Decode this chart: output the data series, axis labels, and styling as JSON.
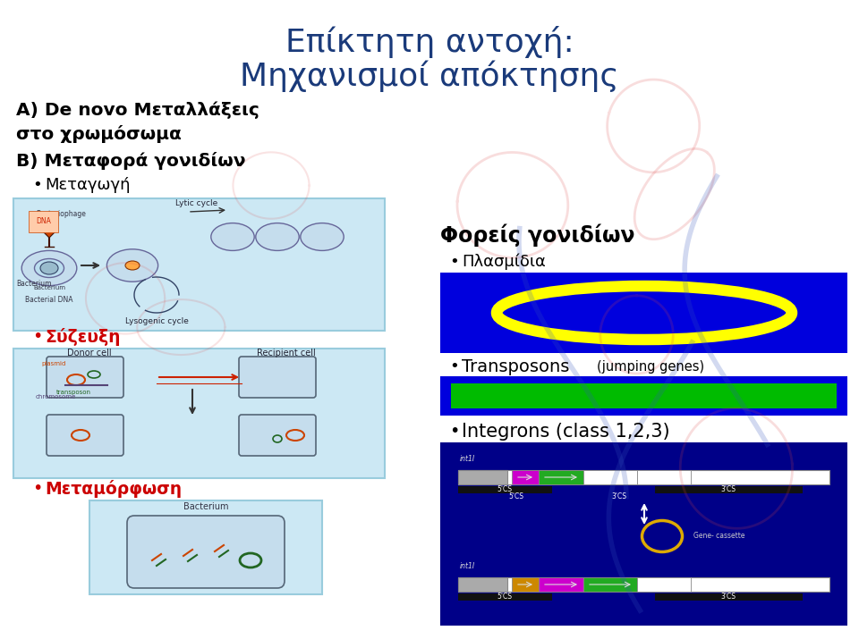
{
  "title_line1": "Επίκτητη αντοχή:",
  "title_line2": "Μηχανισμοί απόκτησης",
  "title_color": "#1a3a7a",
  "title_fontsize": 26,
  "bg_color": "#ffffff",
  "text_A": "A) De novo Μεταλλάξεις",
  "text_A2": "στο χρωμόσωμα",
  "text_B": "B) Μεταφορά γονιδίων",
  "bullet_metagogi": "Μεταγωγή",
  "bullet_syzefxi": "Σύζευξη",
  "bullet_metamorfosi": "Μεταμόρφωση",
  "text_foreis": "Φορείς γονιδίων",
  "bullet_plasmidio": "Πλασμίδια",
  "bullet_transposons": "Transposons",
  "text_jumping": "(jumping genes)",
  "bullet_integrons": "Integrons (class 1,2,3)",
  "black_color": "#000000",
  "red_color": "#cc0000",
  "blue_dark": "#1a3a7a",
  "plasmid_bg": "#0000dd",
  "plasmid_ellipse_color": "#ffff00",
  "transposon_bg": "#0000dd",
  "transposon_bar_color": "#00bb00",
  "integron_bg": "#000088",
  "left_box_bg": "#cce8f4",
  "left_box_edge": "#99ccdd"
}
